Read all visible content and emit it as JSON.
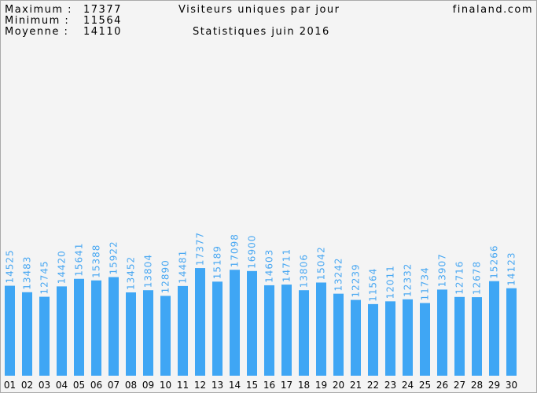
{
  "chart_data": {
    "type": "bar",
    "title": "Visiteurs uniques par jour",
    "subtitle": "Statistiques juin 2016",
    "site": "finaland.com",
    "stats": [
      {
        "label": "Maximum :",
        "value": 17377
      },
      {
        "label": "Minimum :",
        "value": 11564
      },
      {
        "label": "Moyenne :",
        "value": 14110
      }
    ],
    "categories": [
      "01",
      "02",
      "03",
      "04",
      "05",
      "06",
      "07",
      "08",
      "09",
      "10",
      "11",
      "12",
      "13",
      "14",
      "15",
      "16",
      "17",
      "18",
      "19",
      "20",
      "21",
      "22",
      "23",
      "24",
      "25",
      "26",
      "27",
      "28",
      "29",
      "30"
    ],
    "values": [
      14525,
      13483,
      12745,
      14420,
      15641,
      15388,
      15922,
      13452,
      13804,
      12890,
      14481,
      17377,
      15189,
      17098,
      16900,
      14603,
      14711,
      13806,
      15042,
      13242,
      12239,
      11564,
      12011,
      12332,
      11734,
      13907,
      12716,
      12678,
      15266,
      14123
    ],
    "color": "#3fa6f4"
  }
}
